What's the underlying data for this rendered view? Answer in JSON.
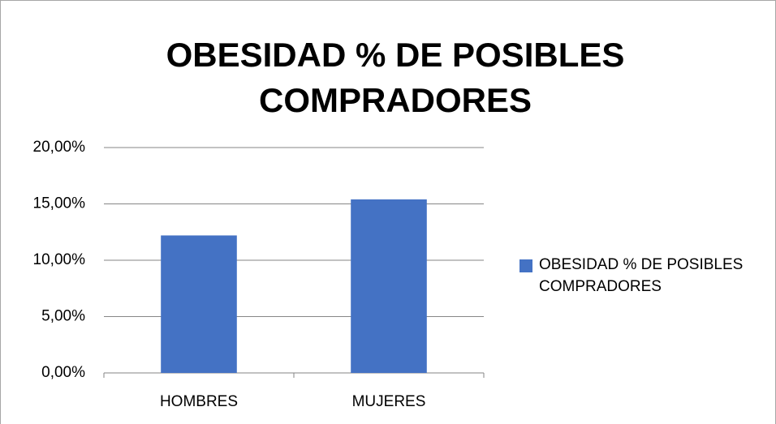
{
  "chart_data": {
    "type": "bar",
    "title": "OBESIDAD % DE POSIBLES COMPRADORES",
    "categories": [
      "HOMBRES",
      "MUJERES"
    ],
    "series": [
      {
        "name": "OBESIDAD % DE POSIBLES COMPRADORES",
        "color": "#4472c4",
        "values": [
          12.2,
          15.4
        ]
      }
    ],
    "ylim": [
      0,
      20
    ],
    "yticks": [
      {
        "value": 0,
        "label": "0,00%"
      },
      {
        "value": 5,
        "label": "5,00%"
      },
      {
        "value": 10,
        "label": "10,00%"
      },
      {
        "value": 15,
        "label": "15,00%"
      },
      {
        "value": 20,
        "label": "20,00%"
      }
    ],
    "grid": true,
    "legend": "right"
  }
}
